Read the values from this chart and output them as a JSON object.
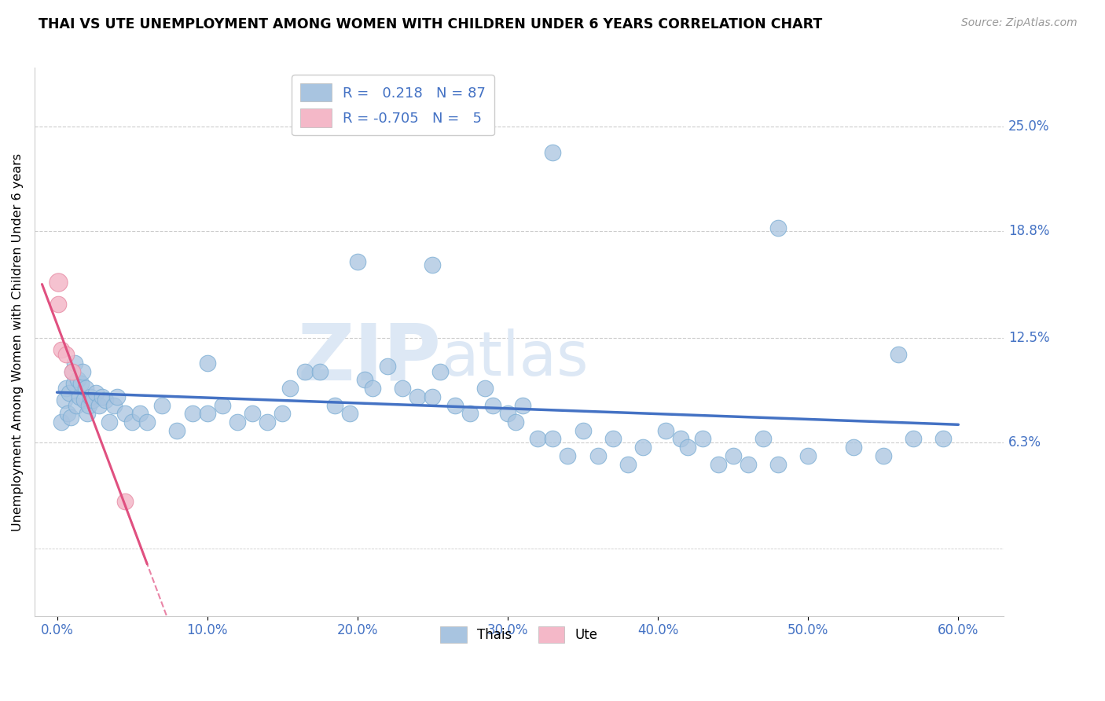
{
  "title": "THAI VS UTE UNEMPLOYMENT AMONG WOMEN WITH CHILDREN UNDER 6 YEARS CORRELATION CHART",
  "source": "Source: ZipAtlas.com",
  "ylabel_label": "Unemployment Among Women with Children Under 6 years",
  "x_tick_labels": [
    "0.0%",
    "10.0%",
    "20.0%",
    "30.0%",
    "40.0%",
    "50.0%",
    "60.0%"
  ],
  "x_tick_values": [
    0.0,
    10.0,
    20.0,
    30.0,
    40.0,
    50.0,
    60.0
  ],
  "y_tick_labels": [
    "6.3%",
    "12.5%",
    "18.8%",
    "25.0%"
  ],
  "y_tick_values": [
    6.3,
    12.5,
    18.8,
    25.0
  ],
  "xlim": [
    -1.5,
    63
  ],
  "ylim": [
    -4.0,
    28.5
  ],
  "thai_color": "#a8c4e0",
  "ute_color": "#f4b8c8",
  "thai_edge_color": "#7aadd4",
  "ute_edge_color": "#e890a8",
  "thai_line_color": "#4472c4",
  "ute_line_color": "#e05080",
  "thai_r": 0.218,
  "thai_n": 87,
  "ute_r": -0.705,
  "ute_n": 5,
  "watermark_zip": "ZIP",
  "watermark_atlas": "atlas",
  "thai_x": [
    0.3,
    0.5,
    0.6,
    0.7,
    0.8,
    0.9,
    1.0,
    1.1,
    1.2,
    1.3,
    1.4,
    1.5,
    1.6,
    1.7,
    1.8,
    1.9,
    2.0,
    2.1,
    2.2,
    2.4,
    2.6,
    2.8,
    3.0,
    3.2,
    3.5,
    3.8,
    4.0,
    4.5,
    5.0,
    5.5,
    6.0,
    7.0,
    8.0,
    9.0,
    10.0,
    11.0,
    12.0,
    13.0,
    14.0,
    15.0,
    15.5,
    16.5,
    17.5,
    18.5,
    19.5,
    20.5,
    21.0,
    22.0,
    23.0,
    24.0,
    25.0,
    25.5,
    26.5,
    27.5,
    28.5,
    29.0,
    30.0,
    30.5,
    31.0,
    32.0,
    33.0,
    34.0,
    35.0,
    36.0,
    37.0,
    38.0,
    39.0,
    40.5,
    41.5,
    42.0,
    43.0,
    44.0,
    45.0,
    46.0,
    47.0,
    48.0,
    50.0,
    53.0,
    55.0,
    57.0,
    59.0,
    33.0,
    25.0,
    20.0,
    48.0,
    56.0,
    10.0
  ],
  "thai_y": [
    7.5,
    8.8,
    9.5,
    8.0,
    9.2,
    7.8,
    10.5,
    9.8,
    11.0,
    8.5,
    10.0,
    9.0,
    9.8,
    10.5,
    8.8,
    9.5,
    8.0,
    8.5,
    9.0,
    8.8,
    9.2,
    8.5,
    9.0,
    8.8,
    7.5,
    8.5,
    9.0,
    8.0,
    7.5,
    8.0,
    7.5,
    8.5,
    7.0,
    8.0,
    8.0,
    8.5,
    7.5,
    8.0,
    7.5,
    8.0,
    9.5,
    10.5,
    10.5,
    8.5,
    8.0,
    10.0,
    9.5,
    10.8,
    9.5,
    9.0,
    9.0,
    10.5,
    8.5,
    8.0,
    9.5,
    8.5,
    8.0,
    7.5,
    8.5,
    6.5,
    6.5,
    5.5,
    7.0,
    5.5,
    6.5,
    5.0,
    6.0,
    7.0,
    6.5,
    6.0,
    6.5,
    5.0,
    5.5,
    5.0,
    6.5,
    5.0,
    5.5,
    6.0,
    5.5,
    6.5,
    6.5,
    23.5,
    16.8,
    17.0,
    19.0,
    11.5,
    11.0
  ],
  "ute_x": [
    0.1,
    0.3,
    0.6,
    1.0,
    4.5
  ],
  "ute_y": [
    14.5,
    11.8,
    11.5,
    10.5,
    2.8
  ],
  "ute_outlier_x": 0.05,
  "ute_outlier_y": 15.8
}
